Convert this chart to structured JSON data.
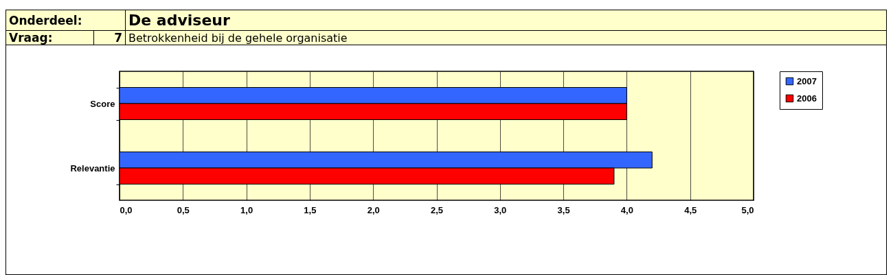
{
  "chart_data": {
    "type": "bar",
    "orientation": "horizontal",
    "title": "De adviseur",
    "subtitle": "Betrokkenheid bij de gehele organisatie",
    "annotations": [
      "Onderdeel:",
      "Vraag:",
      "7"
    ],
    "categories": [
      "Score",
      "Relevantie"
    ],
    "series": [
      {
        "name": "2007",
        "color": "#3366ff",
        "values": [
          4.0,
          4.2
        ]
      },
      {
        "name": "2006",
        "color": "#ff0000",
        "values": [
          4.0,
          3.9
        ]
      }
    ],
    "xlim": [
      0,
      5
    ],
    "xticks": [
      {
        "value": 0,
        "label": "0,0"
      },
      {
        "value": 0.5,
        "label": "0,5"
      },
      {
        "value": 1,
        "label": "1,0"
      },
      {
        "value": 1.5,
        "label": "1,5"
      },
      {
        "value": 2,
        "label": "2,0"
      },
      {
        "value": 2.5,
        "label": "2,5"
      },
      {
        "value": 3,
        "label": "3,0"
      },
      {
        "value": 3.5,
        "label": "3,5"
      },
      {
        "value": 4,
        "label": "4,0"
      },
      {
        "value": 4.5,
        "label": "4,5"
      },
      {
        "value": 5,
        "label": "5,0"
      }
    ],
    "grid": "x",
    "legend": "right"
  }
}
